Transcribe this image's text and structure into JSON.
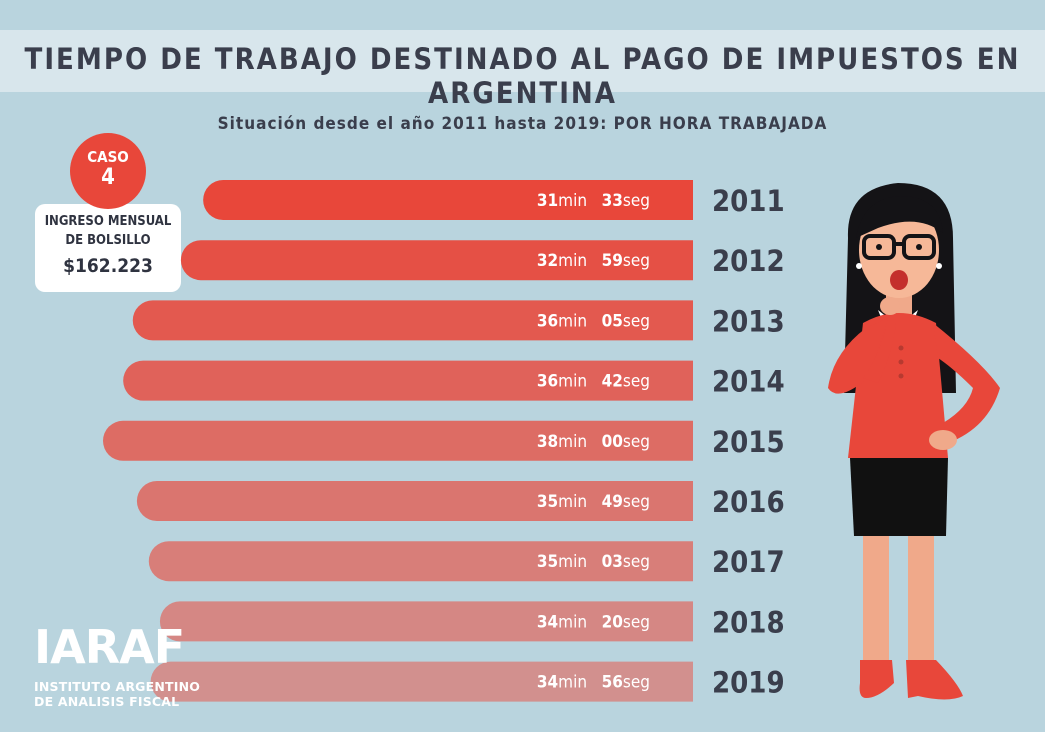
{
  "title": "TIEMPO DE TRABAJO DESTINADO AL PAGO DE IMPUESTOS EN ARGENTINA",
  "subtitle": "Situación desde el año 2011 hasta 2019: POR HORA TRABAJADA",
  "case": {
    "label": "CASO",
    "number": "4"
  },
  "income": {
    "line1": "INGRESO MENSUAL",
    "line2": "DE BOLSILLO",
    "amount": "$162.223"
  },
  "logo": {
    "mark": "IARAF",
    "line1": "INSTITUTO ARGENTINO",
    "line2": "DE ANALISIS FISCAL"
  },
  "colors": {
    "background": "#b9d4de",
    "bar_start": "#e8473a",
    "bar_end": "#d2908e",
    "accent": "#e8473a"
  },
  "chart_data": {
    "type": "bar",
    "orientation": "horizontal",
    "categories": [
      "2011",
      "2012",
      "2013",
      "2014",
      "2015",
      "2016",
      "2017",
      "2018",
      "2019"
    ],
    "values": [
      31.55,
      32.983,
      36.083,
      36.7,
      38.0,
      35.817,
      35.05,
      34.333,
      34.933
    ],
    "value_unit": "minutes per hour worked",
    "labels": [
      {
        "min": "31",
        "min_unit": "min",
        "sec": "33",
        "sec_unit": "seg"
      },
      {
        "min": "32",
        "min_unit": "min",
        "sec": "59",
        "sec_unit": "seg"
      },
      {
        "min": "36",
        "min_unit": "min",
        "sec": "05",
        "sec_unit": "seg"
      },
      {
        "min": "36",
        "min_unit": "min",
        "sec": "42",
        "sec_unit": "seg"
      },
      {
        "min": "38",
        "min_unit": "min",
        "sec": "00",
        "sec_unit": "seg"
      },
      {
        "min": "35",
        "min_unit": "min",
        "sec": "49",
        "sec_unit": "seg"
      },
      {
        "min": "35",
        "min_unit": "min",
        "sec": "03",
        "sec_unit": "seg"
      },
      {
        "min": "34",
        "min_unit": "min",
        "sec": "20",
        "sec_unit": "seg"
      },
      {
        "min": "34",
        "min_unit": "min",
        "sec": "56",
        "sec_unit": "seg"
      }
    ],
    "grid": false,
    "legend": "none"
  }
}
